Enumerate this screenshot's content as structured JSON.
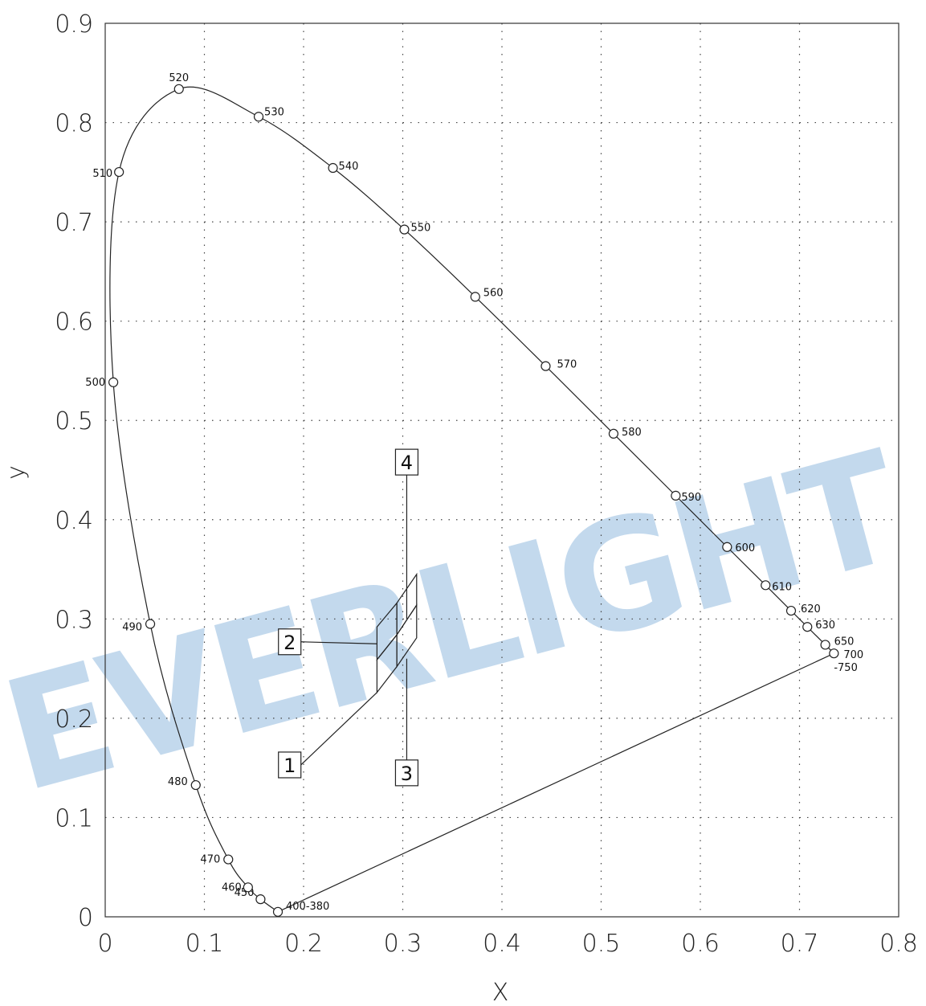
{
  "chart_data": {
    "type": "scatter",
    "title": "",
    "xlabel": "X",
    "ylabel": "y",
    "xlim": [
      0,
      0.8
    ],
    "ylim": [
      0,
      0.9
    ],
    "x_ticks": [
      "0",
      "0.1",
      "0.2",
      "0.3",
      "0.4",
      "0.5",
      "0.6",
      "0.7",
      "0.8"
    ],
    "y_ticks": [
      "0",
      "0.1",
      "0.2",
      "0.3",
      "0.4",
      "0.5",
      "0.6",
      "0.7",
      "0.8",
      "0.9"
    ],
    "grid": true,
    "watermark": "EVERLIGHT",
    "spectral_locus": [
      {
        "label": "400-380",
        "x": 0.1741,
        "y": 0.005
      },
      {
        "label": "450",
        "x": 0.1566,
        "y": 0.0177
      },
      {
        "label": "460",
        "x": 0.144,
        "y": 0.0297
      },
      {
        "label": "470",
        "x": 0.1241,
        "y": 0.0578
      },
      {
        "label": "480",
        "x": 0.0913,
        "y": 0.1327
      },
      {
        "label": "490",
        "x": 0.0454,
        "y": 0.295
      },
      {
        "label": "500",
        "x": 0.0082,
        "y": 0.5384
      },
      {
        "label": "510",
        "x": 0.0139,
        "y": 0.7502
      },
      {
        "label": "520",
        "x": 0.0743,
        "y": 0.8338
      },
      {
        "label": "530",
        "x": 0.1547,
        "y": 0.8059
      },
      {
        "label": "540",
        "x": 0.2296,
        "y": 0.7543
      },
      {
        "label": "550",
        "x": 0.3016,
        "y": 0.6923
      },
      {
        "label": "560",
        "x": 0.3731,
        "y": 0.6245
      },
      {
        "label": "570",
        "x": 0.4441,
        "y": 0.5547
      },
      {
        "label": "580",
        "x": 0.5125,
        "y": 0.4866
      },
      {
        "label": "590",
        "x": 0.5752,
        "y": 0.4242
      },
      {
        "label": "600",
        "x": 0.627,
        "y": 0.3725
      },
      {
        "label": "610",
        "x": 0.6658,
        "y": 0.334
      },
      {
        "label": "620",
        "x": 0.6915,
        "y": 0.3083
      },
      {
        "label": "630",
        "x": 0.7079,
        "y": 0.292
      },
      {
        "label": "650",
        "x": 0.726,
        "y": 0.274
      },
      {
        "label": "700",
        "x": 0.7347,
        "y": 0.2653
      },
      {
        "label": "-750",
        "x": 0.7347,
        "y": 0.2653
      }
    ],
    "bins": [
      {
        "label": "1",
        "corners": [
          [
            0.274,
            0.226
          ],
          [
            0.274,
            0.259
          ],
          [
            0.294,
            0.284
          ],
          [
            0.294,
            0.252
          ]
        ]
      },
      {
        "label": "2",
        "corners": [
          [
            0.274,
            0.259
          ],
          [
            0.274,
            0.292
          ],
          [
            0.294,
            0.316
          ],
          [
            0.294,
            0.284
          ]
        ]
      },
      {
        "label": "3",
        "corners": [
          [
            0.294,
            0.252
          ],
          [
            0.294,
            0.284
          ],
          [
            0.314,
            0.314
          ],
          [
            0.314,
            0.281
          ]
        ]
      },
      {
        "label": "4",
        "corners": [
          [
            0.294,
            0.284
          ],
          [
            0.294,
            0.316
          ],
          [
            0.314,
            0.345
          ],
          [
            0.314,
            0.314
          ]
        ]
      }
    ],
    "bin_labels": [
      {
        "label": "1",
        "x": 0.186,
        "y": 0.153
      },
      {
        "label": "2",
        "x": 0.186,
        "y": 0.277
      },
      {
        "label": "3",
        "x": 0.304,
        "y": 0.145
      },
      {
        "label": "4",
        "x": 0.304,
        "y": 0.458
      }
    ]
  }
}
